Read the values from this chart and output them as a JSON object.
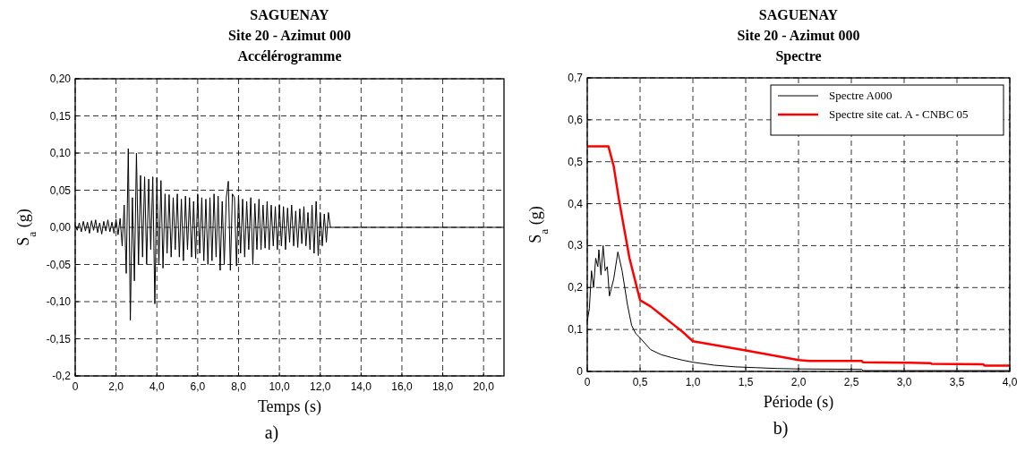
{
  "chart_data": [
    {
      "type": "line",
      "title": "SAGUENAY\nSite 20 - Azimut 000\nAccélérogramme",
      "xlabel": "Temps (s)",
      "ylabel": "S$_{a}$ (g)",
      "annotations": [
        "a)"
      ],
      "x": [
        0,
        0.1,
        0.2,
        0.3,
        0.4,
        0.5,
        0.6,
        0.7,
        0.8,
        0.9,
        1.0,
        1.1,
        1.2,
        1.3,
        1.4,
        1.5,
        1.6,
        1.7,
        1.8,
        1.9,
        2.0,
        2.1,
        2.2,
        2.3,
        2.4,
        2.5,
        2.6,
        2.7,
        2.8,
        2.9,
        3.0,
        3.1,
        3.2,
        3.3,
        3.4,
        3.5,
        3.6,
        3.7,
        3.8,
        3.9,
        4.0,
        4.1,
        4.2,
        4.3,
        4.4,
        4.5,
        4.6,
        4.7,
        4.8,
        4.9,
        5.0,
        5.1,
        5.2,
        5.3,
        5.4,
        5.5,
        5.6,
        5.7,
        5.8,
        5.9,
        6.0,
        6.1,
        6.2,
        6.3,
        6.4,
        6.5,
        6.6,
        6.7,
        6.8,
        6.9,
        7.0,
        7.1,
        7.2,
        7.3,
        7.4,
        7.5,
        7.6,
        7.7,
        7.8,
        7.9,
        8.0,
        8.1,
        8.2,
        8.3,
        8.4,
        8.5,
        8.6,
        8.7,
        8.8,
        8.9,
        9.0,
        9.1,
        9.2,
        9.3,
        9.4,
        9.5,
        9.6,
        9.7,
        9.8,
        9.9,
        10.0,
        10.1,
        10.2,
        10.3,
        10.4,
        10.5,
        10.6,
        10.7,
        10.8,
        10.9,
        11.0,
        11.1,
        11.2,
        11.3,
        11.4,
        11.5,
        11.6,
        11.7,
        11.8,
        11.9,
        12.0,
        12.1,
        12.2,
        12.3,
        12.4,
        12.5,
        21
      ],
      "series": [
        {
          "color": "#000000",
          "values": [
            0.003,
            -0.004,
            0.006,
            -0.006,
            0.008,
            -0.005,
            0.007,
            -0.008,
            0.009,
            -0.004,
            0.01,
            -0.007,
            0.006,
            -0.009,
            0.008,
            -0.005,
            0.01,
            -0.006,
            0.007,
            -0.008,
            0.011,
            -0.01,
            0.012,
            -0.025,
            0.03,
            -0.062,
            0.106,
            -0.125,
            0.04,
            -0.072,
            0.1,
            -0.05,
            0.07,
            -0.04,
            0.068,
            -0.05,
            0.065,
            -0.03,
            0.068,
            -0.103,
            0.067,
            -0.05,
            0.063,
            -0.055,
            0.045,
            -0.035,
            0.044,
            -0.04,
            0.04,
            -0.03,
            0.045,
            -0.04,
            0.038,
            -0.045,
            0.042,
            -0.03,
            0.04,
            -0.04,
            0.035,
            -0.042,
            0.045,
            -0.035,
            0.04,
            -0.045,
            0.038,
            -0.05,
            0.04,
            -0.045,
            0.045,
            -0.04,
            0.042,
            -0.058,
            0.035,
            -0.05,
            0.04,
            0.062,
            -0.058,
            0.045,
            0.04,
            -0.052,
            0.043,
            -0.035,
            0.038,
            -0.04,
            0.035,
            -0.03,
            0.04,
            -0.05,
            0.032,
            -0.03,
            0.038,
            -0.03,
            0.03,
            -0.028,
            0.035,
            -0.03,
            0.03,
            -0.025,
            0.028,
            -0.03,
            0.03,
            -0.025,
            0.028,
            -0.03,
            0.026,
            -0.02,
            0.03,
            -0.025,
            0.022,
            -0.027,
            0.025,
            -0.022,
            0.028,
            -0.025,
            0.02,
            -0.03,
            0.03,
            -0.035,
            0.035,
            -0.038,
            0.02,
            -0.025,
            0.018,
            -0.02,
            0.02,
            0,
            0
          ]
        }
      ],
      "xlim": [
        0,
        21
      ],
      "xticks": [
        0,
        {
          "value": 2,
          "label": "2,0"
        },
        {
          "value": 4,
          "label": "4,0"
        },
        {
          "value": 6,
          "label": "6,0"
        },
        {
          "value": 8,
          "label": "8,0"
        },
        {
          "value": 10,
          "label": "10,0"
        },
        {
          "value": 12,
          "label": "12,0"
        },
        {
          "value": 14,
          "label": "14,0"
        },
        {
          "value": 16,
          "label": "16,0"
        },
        {
          "value": 18,
          "label": "18,0"
        },
        {
          "value": 20,
          "label": "20,0"
        }
      ],
      "ylim": [
        -0.2,
        0.2
      ],
      "yticks": [
        {
          "value": -0.2,
          "label": "-0,2"
        },
        {
          "value": -0.15,
          "label": "-0,15"
        },
        {
          "value": -0.1,
          "label": "-0,10"
        },
        {
          "value": -0.05,
          "label": "-0,05"
        },
        {
          "value": 0,
          "label": "0,00"
        },
        {
          "value": 0.05,
          "label": "0,05"
        },
        {
          "value": 0.1,
          "label": "0,10"
        },
        {
          "value": 0.15,
          "label": "0,15"
        },
        {
          "value": 0.2,
          "label": "0,20"
        }
      ],
      "grid": true,
      "line_style": "solid"
    },
    {
      "type": "line",
      "title": "SAGUENAY\nSite 20 - Azimut 000\nSpectre",
      "xlabel": "Période (s)",
      "ylabel": "S$_{a}$ (g)",
      "annotations": [
        "b)"
      ],
      "series": [
        {
          "name": "Spectre A000",
          "color": "#000000",
          "x": [
            0,
            0.02,
            0.04,
            0.06,
            0.08,
            0.1,
            0.11,
            0.13,
            0.15,
            0.17,
            0.19,
            0.21,
            0.25,
            0.29,
            0.33,
            0.38,
            0.42,
            0.46,
            0.5,
            0.6,
            0.7,
            0.8,
            0.9,
            1.0,
            1.2,
            1.4,
            1.6,
            1.8,
            2.0,
            2.6,
            2.61,
            4.0
          ],
          "values": [
            0.12,
            0.15,
            0.24,
            0.2,
            0.27,
            0.25,
            0.29,
            0.23,
            0.3,
            0.24,
            0.25,
            0.18,
            0.22,
            0.285,
            0.24,
            0.16,
            0.11,
            0.09,
            0.08,
            0.052,
            0.04,
            0.033,
            0.027,
            0.022,
            0.015,
            0.011,
            0.009,
            0.007,
            0.006,
            0.005,
            0.002,
            0.002
          ]
        },
        {
          "name": "Spectre site cat. A - CNBC 05",
          "color": "#ff0000",
          "x": [
            0,
            0.2,
            0.25,
            0.3,
            0.35,
            0.4,
            0.5,
            0.6,
            0.7,
            0.8,
            0.9,
            1.0,
            1.5,
            2.0,
            2.1,
            2.6,
            2.61,
            3.0,
            3.25,
            3.26,
            3.75,
            3.76,
            4.0
          ],
          "values": [
            0.537,
            0.537,
            0.49,
            0.41,
            0.34,
            0.27,
            0.17,
            0.155,
            0.135,
            0.115,
            0.095,
            0.072,
            0.05,
            0.027,
            0.025,
            0.025,
            0.022,
            0.021,
            0.02,
            0.018,
            0.017,
            0.014,
            0.014
          ]
        }
      ],
      "xlim": [
        0,
        4
      ],
      "xticks": [
        0,
        {
          "value": 0.5,
          "label": "0,5"
        },
        {
          "value": 1,
          "label": "1,0"
        },
        {
          "value": 1.5,
          "label": "1,5"
        },
        {
          "value": 2,
          "label": "2,0"
        },
        {
          "value": 2.5,
          "label": "2,5"
        },
        {
          "value": 3,
          "label": "3,0"
        },
        {
          "value": 3.5,
          "label": "3,5"
        },
        {
          "value": 4,
          "label": "4,0"
        }
      ],
      "ylim": [
        0,
        0.7
      ],
      "yticks": [
        0,
        {
          "value": 0.1,
          "label": "0,1"
        },
        {
          "value": 0.2,
          "label": "0,2"
        },
        {
          "value": 0.3,
          "label": "0,3"
        },
        {
          "value": 0.4,
          "label": "0,4"
        },
        {
          "value": 0.5,
          "label": "0,5"
        },
        {
          "value": 0.6,
          "label": "0,6"
        },
        {
          "value": 0.7,
          "label": "0,7"
        }
      ],
      "grid": true,
      "legend": "top right",
      "line_style": "solid"
    }
  ]
}
